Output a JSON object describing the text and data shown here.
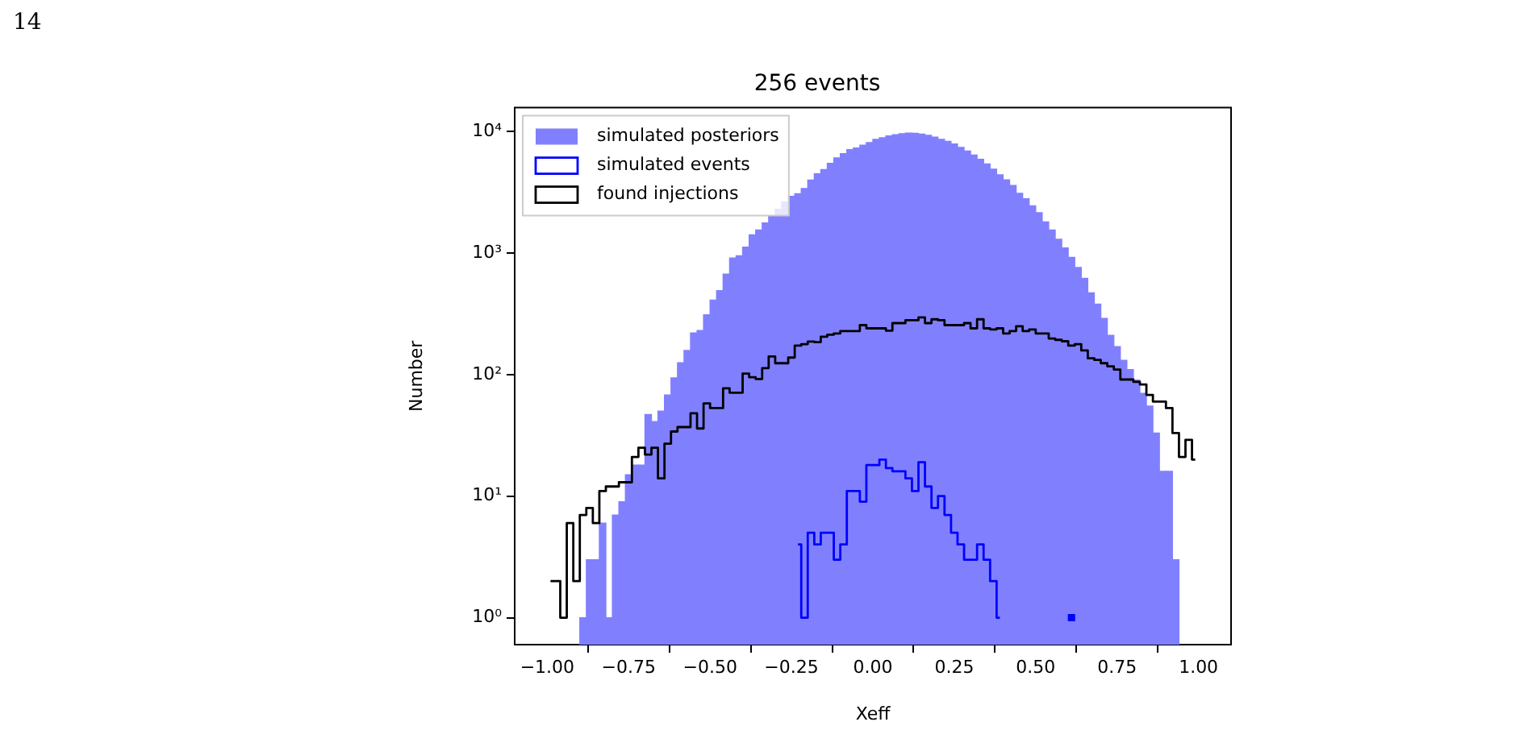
{
  "chart_data": {
    "type": "histogram",
    "title": "256 events",
    "xlabel": "Xeff",
    "ylabel": "Number",
    "annotations": [
      "14"
    ],
    "bins": [
      -1,
      -0.98,
      -0.96,
      -0.94,
      -0.92,
      -0.9,
      -0.88,
      -0.86,
      -0.84,
      -0.82,
      -0.8,
      -0.78,
      -0.76,
      -0.74,
      -0.72,
      -0.7,
      -0.68,
      -0.66,
      -0.64,
      -0.62,
      -0.6,
      -0.58,
      -0.56,
      -0.54,
      -0.52,
      -0.5,
      -0.48,
      -0.46,
      -0.44,
      -0.42,
      -0.4,
      -0.38,
      -0.36,
      -0.34,
      -0.32,
      -0.3,
      -0.28,
      -0.26,
      -0.24,
      -0.22,
      -0.2,
      -0.18,
      -0.16,
      -0.14,
      -0.12,
      -0.1,
      -0.08,
      -0.06,
      -0.04,
      -0.02,
      0,
      0.02,
      0.04,
      0.06,
      0.08,
      0.1,
      0.12,
      0.14,
      0.16,
      0.18,
      0.2,
      0.22,
      0.24,
      0.26,
      0.28,
      0.3,
      0.32,
      0.34,
      0.36,
      0.38,
      0.4,
      0.42,
      0.44,
      0.46,
      0.48,
      0.5,
      0.52,
      0.54,
      0.56,
      0.58,
      0.6,
      0.62,
      0.64,
      0.66,
      0.68,
      0.7,
      0.72,
      0.74,
      0.76,
      0.78,
      0.8,
      0.82,
      0.84,
      0.86,
      0.88,
      0.9,
      0.92,
      0.94,
      0.96,
      0.98,
      1
    ],
    "series": [
      {
        "name": "simulated posteriors",
        "color": "#8080ff",
        "values": [
          null,
          null,
          null,
          null,
          null,
          1,
          3,
          3,
          6,
          1,
          7,
          9,
          15,
          18,
          18,
          47,
          41,
          50,
          68,
          94,
          125,
          158,
          220,
          230,
          310,
          410,
          490,
          670,
          910,
          950,
          1120,
          1410,
          1550,
          1770,
          2000,
          2290,
          2630,
          2930,
          3080,
          3400,
          3980,
          4480,
          4860,
          5480,
          6060,
          6580,
          7100,
          7300,
          7700,
          8100,
          8600,
          8900,
          9200,
          9400,
          9600,
          9700,
          9650,
          9500,
          9300,
          9000,
          8600,
          8300,
          7900,
          7400,
          6900,
          6400,
          5900,
          5400,
          4900,
          4400,
          4000,
          3600,
          3100,
          2800,
          2450,
          2150,
          1800,
          1550,
          1300,
          1100,
          920,
          760,
          620,
          470,
          380,
          290,
          210,
          170,
          131,
          110,
          90,
          70,
          55,
          33,
          16,
          16,
          3,
          null,
          null,
          null
        ]
      },
      {
        "name": "simulated events",
        "type": "step",
        "color": "#0000ff",
        "x": [
          -0.23,
          -0.21,
          -0.19,
          -0.17,
          -0.15,
          -0.13,
          -0.11,
          -0.09,
          -0.07,
          -0.05,
          -0.03,
          -0.01,
          0.01,
          0.03,
          0.05,
          0.07,
          0.09,
          0.11,
          0.13,
          0.15,
          0.17,
          0.19,
          0.21,
          0.23,
          0.25,
          0.27,
          0.29,
          0.31,
          0.33,
          0.35,
          0.37,
          0.39,
          0.41,
          0.43,
          0.45,
          0.47,
          0.49,
          0.51,
          0.53,
          0.55,
          0.57,
          0.59,
          0.61
        ],
        "values": [
          4,
          1,
          5,
          4,
          5,
          5,
          3,
          4,
          11,
          11,
          9,
          18,
          18,
          20,
          17,
          16,
          16,
          14,
          11,
          19,
          12,
          8,
          10,
          7,
          5,
          4,
          3,
          3,
          4,
          3,
          2,
          1,
          null,
          null,
          null,
          null,
          null,
          null,
          null,
          null,
          null,
          null,
          1
        ]
      },
      {
        "name": "found injections",
        "type": "step",
        "color": "#000000",
        "x": [
          -0.99,
          -0.97,
          -0.95,
          -0.93,
          -0.91,
          -0.89,
          -0.87,
          -0.85,
          -0.83,
          -0.81,
          -0.79,
          -0.77,
          -0.75,
          -0.73,
          -0.71,
          -0.69,
          -0.67,
          -0.65,
          -0.63,
          -0.61,
          -0.59,
          -0.57,
          -0.55,
          -0.53,
          -0.51,
          -0.49,
          -0.47,
          -0.45,
          -0.43,
          -0.41,
          -0.39,
          -0.37,
          -0.35,
          -0.33,
          -0.31,
          -0.29,
          -0.27,
          -0.25,
          -0.23,
          -0.21,
          -0.19,
          -0.17,
          -0.15,
          -0.13,
          -0.11,
          -0.09,
          -0.07,
          -0.05,
          -0.03,
          -0.01,
          0.01,
          0.03,
          0.05,
          0.07,
          0.09,
          0.11,
          0.13,
          0.15,
          0.17,
          0.19,
          0.21,
          0.23,
          0.25,
          0.27,
          0.29,
          0.31,
          0.33,
          0.35,
          0.37,
          0.39,
          0.41,
          0.43,
          0.45,
          0.47,
          0.49,
          0.51,
          0.53,
          0.55,
          0.57,
          0.59,
          0.61,
          0.63,
          0.65,
          0.67,
          0.69,
          0.71,
          0.73,
          0.75,
          0.77,
          0.79,
          0.81,
          0.83,
          0.85,
          0.87,
          0.89,
          0.91,
          0.93,
          0.95,
          0.97,
          0.99
        ],
        "values": [
          2,
          2,
          1,
          6,
          2,
          7,
          8,
          6,
          11,
          12,
          12,
          13,
          13,
          21,
          25,
          22,
          25,
          14,
          27,
          34,
          37,
          37,
          48,
          36,
          58,
          53,
          53,
          77,
          71,
          71,
          102,
          95,
          92,
          113,
          141,
          124,
          124,
          138,
          173,
          178,
          187,
          185,
          205,
          213,
          218,
          228,
          228,
          228,
          255,
          240,
          240,
          240,
          230,
          265,
          265,
          280,
          280,
          295,
          265,
          285,
          280,
          255,
          255,
          255,
          265,
          240,
          285,
          240,
          235,
          240,
          218,
          228,
          250,
          228,
          235,
          218,
          218,
          198,
          193,
          188,
          173,
          178,
          158,
          136,
          132,
          124,
          117,
          110,
          91,
          91,
          87,
          83,
          68,
          60,
          60,
          53,
          33,
          21,
          29,
          20
        ]
      }
    ],
    "log": "y",
    "xlim": [
      -1.1,
      1.1
    ],
    "ylim": [
      0.62,
      15700
    ],
    "xticks": [
      {
        "value": -1,
        "label": "−1.00"
      },
      {
        "value": -0.75,
        "label": "−0.75"
      },
      {
        "value": -0.5,
        "label": "−0.50"
      },
      {
        "value": -0.25,
        "label": "−0.25"
      },
      {
        "value": 0,
        "label": "0.00"
      },
      {
        "value": 0.25,
        "label": "0.25"
      },
      {
        "value": 0.5,
        "label": "0.50"
      },
      {
        "value": 0.75,
        "label": "0.75"
      },
      {
        "value": 1,
        "label": "1.00"
      }
    ],
    "yticks": [
      {
        "value": 1,
        "label": "10⁰"
      },
      {
        "value": 10,
        "label": "10¹"
      },
      {
        "value": 100,
        "label": "10²"
      },
      {
        "value": 1000,
        "label": "10³"
      },
      {
        "value": 10000,
        "label": "10⁴"
      }
    ],
    "legend": "top left",
    "grid": false
  }
}
